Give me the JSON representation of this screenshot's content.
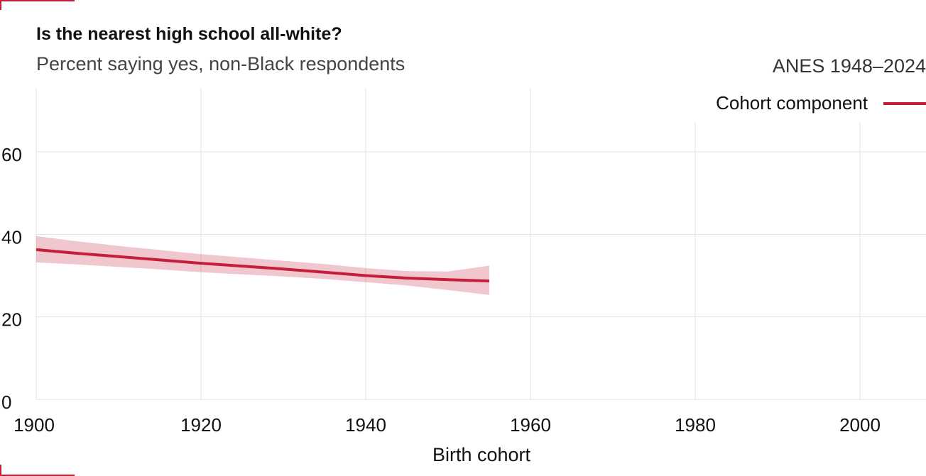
{
  "header": {
    "title": "Is the nearest high school all-white?",
    "subtitle": "Percent saying yes, non-Black respondents",
    "source": "ANES 1948–2024"
  },
  "legend": {
    "label": "Cohort component",
    "color": "#c41e3a"
  },
  "chart_data": {
    "type": "line",
    "title": "Is the nearest high school all-white?",
    "subtitle": "Percent saying yes, non-Black respondents",
    "xlabel": "Birth cohort",
    "ylabel": "",
    "xlim": [
      1900,
      2008
    ],
    "ylim": [
      0,
      75
    ],
    "xticks": [
      1900,
      1920,
      1940,
      1960,
      1980,
      2000
    ],
    "yticks": [
      0,
      20,
      40,
      60
    ],
    "grid": true,
    "legend_position": "top-right",
    "series": [
      {
        "name": "Cohort component",
        "color": "#c41e3a",
        "x": [
          1900,
          1905,
          1910,
          1915,
          1920,
          1925,
          1930,
          1935,
          1940,
          1945,
          1950,
          1955
        ],
        "values": [
          36.3,
          35.4,
          34.6,
          33.8,
          33.0,
          32.3,
          31.6,
          30.8,
          30.0,
          29.4,
          29.0,
          28.7
        ],
        "lower": [
          33.2,
          32.7,
          32.1,
          31.5,
          30.8,
          30.3,
          29.8,
          29.2,
          28.4,
          27.6,
          26.5,
          25.3
        ],
        "upper": [
          39.6,
          38.3,
          37.2,
          36.2,
          35.2,
          34.4,
          33.6,
          32.8,
          31.8,
          31.1,
          31.0,
          32.4
        ]
      }
    ]
  }
}
